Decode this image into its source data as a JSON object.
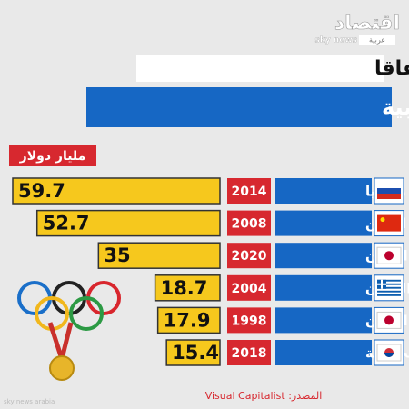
{
  "logo": {
    "name": "اقتصاد",
    "brand": "sky news",
    "tag": "عربية"
  },
  "watermark": "sky news arabia",
  "chart_data": {
    "type": "bar",
    "title": "الدول الأكثر إنفاقا",
    "subtitle": "على دورة الألعاب الأولمبية",
    "unit": "مليار دولار",
    "categories": [
      "روسيا",
      "الصين",
      "اليابان",
      "اليونان",
      "اليابان",
      "كوريا الجنوبية"
    ],
    "years": [
      2014,
      2008,
      2020,
      2004,
      1998,
      2018
    ],
    "values": [
      59.7,
      52.7,
      35,
      18.7,
      17.9,
      15.4
    ],
    "color": "#f6c81d",
    "source": "المصدر: Visual Capitalist"
  }
}
